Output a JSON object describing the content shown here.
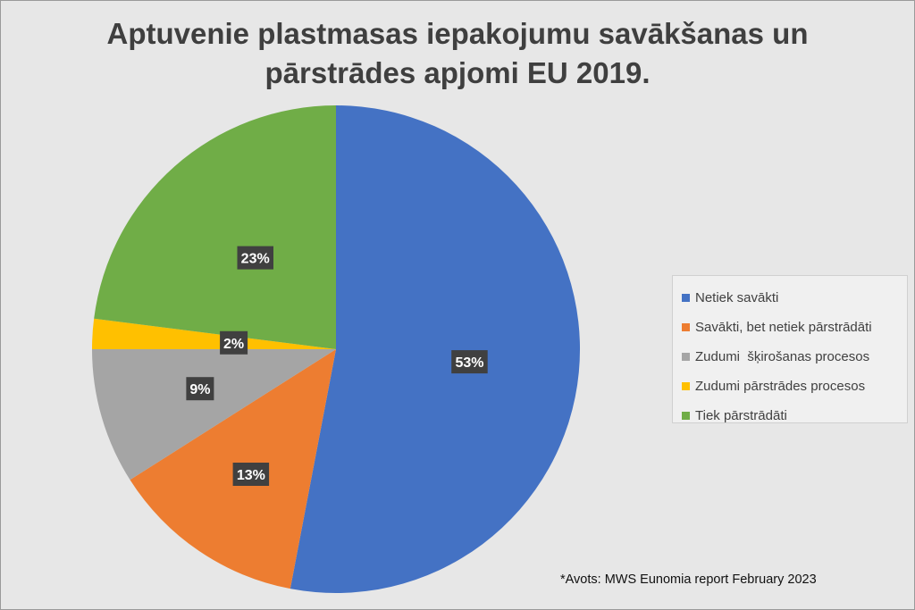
{
  "chart_data": {
    "type": "pie",
    "title_lines": [
      "Aptuvenie plastmasas iepakojumu savākšanas un",
      "pārstrādes apjomi EU 2019."
    ],
    "slices": [
      {
        "label": "Netiek savākti",
        "value": 53,
        "display": "53%",
        "color": "#4472c4"
      },
      {
        "label": "Savākti, bet netiek pārstrādāti",
        "value": 13,
        "display": "13%",
        "color": "#ed7d31"
      },
      {
        "label": "Zudumi  šķirošanas procesos",
        "value": 9,
        "display": "9%",
        "color": "#a5a5a5"
      },
      {
        "label": "Zudumi pārstrādes procesos",
        "value": 2,
        "display": "2%",
        "color": "#ffc000"
      },
      {
        "label": "Tiek pārstrādāti",
        "value": 23,
        "display": "23%",
        "color": "#70ad47"
      }
    ],
    "legend_position": "right"
  },
  "source_note": "*Avots: MWS Eunomia report February 2023"
}
